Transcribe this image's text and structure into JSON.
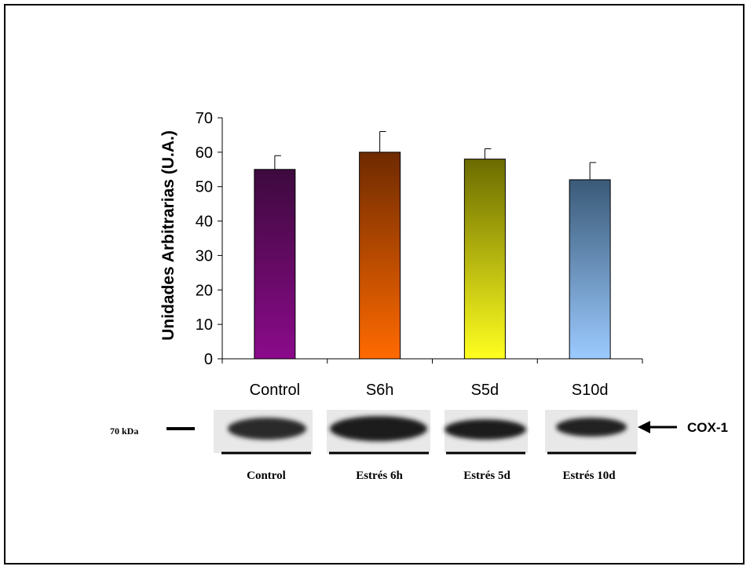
{
  "chart_data": {
    "type": "bar",
    "categories": [
      "Control",
      "S6h",
      "S5d",
      "S10d"
    ],
    "values": [
      55,
      60,
      58,
      52
    ],
    "errors": [
      4,
      6,
      3,
      5
    ],
    "ylabel": "Unidades Arbitrarias (U.A.)",
    "xlabel": "",
    "ylim": [
      0,
      70
    ],
    "yticks": [
      0,
      10,
      20,
      30,
      40,
      50,
      60,
      70
    ],
    "grid": false,
    "colors": [
      {
        "top": "#3d0a3d",
        "bottom": "#8b0a8b"
      },
      {
        "top": "#6e2a00",
        "bottom": "#ff6a00"
      },
      {
        "top": "#6b6b00",
        "bottom": "#ffff20"
      },
      {
        "top": "#3a5a78",
        "bottom": "#9ccaff"
      }
    ]
  },
  "blot": {
    "marker_label": "70 kDa",
    "band_label": "COX-1",
    "lanes": [
      "Control",
      "Estrés 6h",
      "Estrés 5d",
      "Estrés 10d"
    ]
  }
}
